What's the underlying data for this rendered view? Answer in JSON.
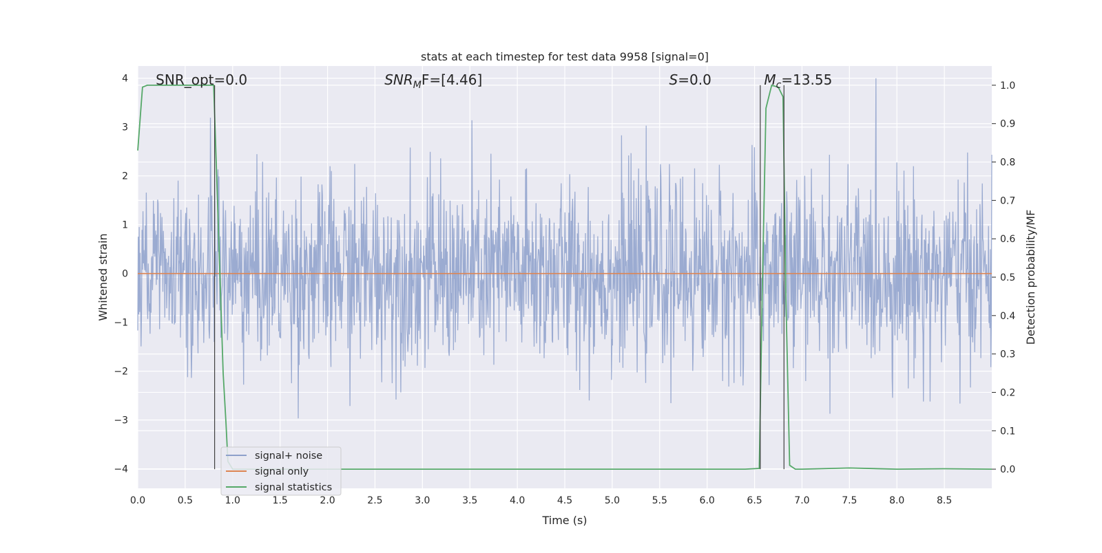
{
  "chart_data": {
    "type": "line",
    "title": "stats at each timestep for test data 9958 [signal=0]",
    "xlabel": "Time (s)",
    "ylabel_left": "Whitened strain",
    "ylabel_right": "Detection probability/MF",
    "xlim": [
      0.0,
      9.0
    ],
    "ylim_left": [
      -4.4,
      4.25
    ],
    "ylim_right": [
      -0.05,
      1.05
    ],
    "x_ticks": [
      "0.0",
      "0.5",
      "1.0",
      "1.5",
      "2.0",
      "2.5",
      "3.0",
      "3.5",
      "4.0",
      "4.5",
      "5.0",
      "5.5",
      "6.0",
      "6.5",
      "7.0",
      "7.5",
      "8.0",
      "8.5"
    ],
    "y_ticks_left": [
      "4",
      "3",
      "2",
      "1",
      "0",
      "−1",
      "−2",
      "−3",
      "−4"
    ],
    "y_ticks_right": [
      "1.0",
      "0.9",
      "0.8",
      "0.7",
      "0.6",
      "0.5",
      "0.4",
      "0.3",
      "0.2",
      "0.1",
      "0.0"
    ],
    "grid": true,
    "legend_position": "lower-left",
    "annotations": [
      {
        "label": "SNR_opt=0.0",
        "x": 0.19
      },
      {
        "label_italic": "SNR",
        "label_sub": "M",
        "label_rest": "F=[4.46]",
        "x": 2.6
      },
      {
        "label_italic": "S",
        "label_rest": "=0.0",
        "x": 5.6
      },
      {
        "label_italic": "M",
        "label_sub": "c",
        "label_rest": "=13.55",
        "x": 6.6
      }
    ],
    "vertical_lines": [
      0.81,
      6.56,
      6.81
    ],
    "series": [
      {
        "name": "signal+ noise",
        "axis": "left",
        "color": "#8da0cb",
        "description_stats": {
          "mean": 0.0,
          "std": 0.95,
          "max_abs": 4.0
        }
      },
      {
        "name": "signal only",
        "axis": "left",
        "color": "#dd8452",
        "x": [
          0.0,
          9.0
        ],
        "y": [
          0.0,
          0.0
        ]
      },
      {
        "name": "signal statistics",
        "axis": "right",
        "color": "#55a868",
        "x": [
          0.0,
          0.05,
          0.1,
          0.15,
          0.2,
          0.4,
          0.6,
          0.75,
          0.8,
          0.82,
          0.86,
          0.9,
          0.93,
          0.95,
          1.0,
          2.0,
          3.0,
          4.0,
          5.0,
          6.0,
          6.4,
          6.55,
          6.58,
          6.62,
          6.68,
          6.75,
          6.8,
          6.83,
          6.87,
          6.93,
          7.0,
          7.5,
          8.0,
          8.5,
          9.0
        ],
        "y": [
          0.83,
          0.995,
          1.0,
          1.0,
          1.0,
          1.0,
          1.0,
          1.0,
          1.0,
          0.85,
          0.55,
          0.25,
          0.12,
          0.02,
          0.0,
          0.0,
          0.0,
          0.0,
          0.0,
          0.0,
          0.0,
          0.002,
          0.45,
          0.94,
          1.0,
          0.995,
          0.97,
          0.45,
          0.01,
          0.0,
          0.0,
          0.003,
          0.0,
          0.001,
          0.0
        ]
      }
    ]
  }
}
